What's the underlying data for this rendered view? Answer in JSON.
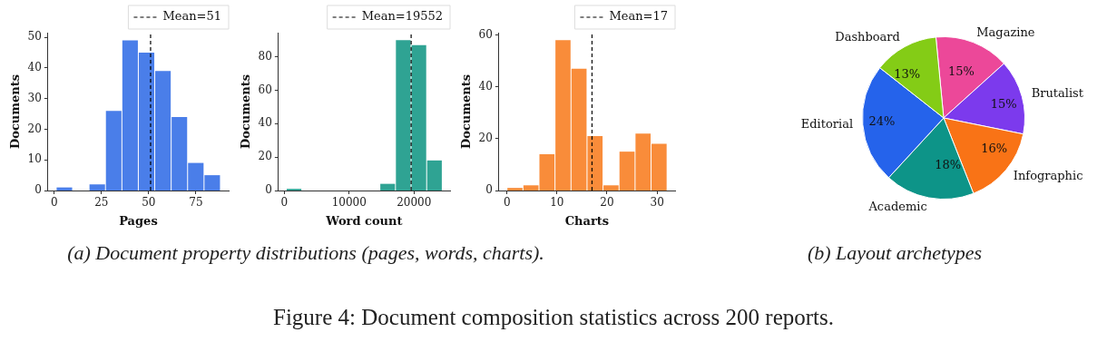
{
  "chart_data": [
    {
      "type": "histogram",
      "xlabel": "Pages",
      "ylabel": "Documents",
      "color": "#4a7ee9",
      "bins": [
        1,
        9.7,
        18.4,
        27.1,
        35.8,
        44.5,
        53.2,
        61.9,
        70.6,
        79.3,
        88
      ],
      "values": [
        1,
        0,
        2,
        26,
        49,
        45,
        39,
        24,
        9,
        5
      ],
      "xlim": [
        -3.35,
        92.35
      ],
      "xticks": [
        0,
        25,
        50,
        75
      ],
      "ylim": [
        0,
        51.5
      ],
      "yticks": [
        0,
        10,
        20,
        30,
        40,
        50
      ],
      "ref_lines": [
        {
          "axis": "x",
          "value": 51,
          "label": "Mean=51",
          "color": "#000000",
          "line_style": "dashed"
        }
      ],
      "legend": "top right",
      "grid": false,
      "annotations": [
        "(a) Document property distributions (pages, words, charts)."
      ]
    },
    {
      "type": "histogram",
      "xlabel": "Word count",
      "ylabel": "Documents",
      "color": "#2fa393",
      "bins": [
        300,
        2705,
        5110,
        7515,
        9920,
        12325,
        14730,
        17135,
        19540,
        21945,
        24350
      ],
      "values": [
        1,
        0,
        0,
        0,
        0,
        0,
        4,
        90,
        87,
        18
      ],
      "xlim": [
        -902,
        25552
      ],
      "xticks": [
        0,
        10000,
        20000
      ],
      "ylim": [
        0,
        94.5
      ],
      "yticks": [
        0,
        20,
        40,
        60,
        80
      ],
      "ref_lines": [
        {
          "axis": "x",
          "value": 19552,
          "label": "Mean=19552",
          "color": "#000000",
          "line_style": "dashed"
        }
      ],
      "legend": "top right",
      "grid": false
    },
    {
      "type": "histogram",
      "xlabel": "Charts",
      "ylabel": "Documents",
      "color": "#f98c3a",
      "bins": [
        0,
        3.2,
        6.4,
        9.6,
        12.8,
        16,
        19.2,
        22.4,
        25.6,
        28.8,
        32
      ],
      "values": [
        1,
        2,
        14,
        58,
        47,
        21,
        2,
        15,
        22,
        18
      ],
      "xlim": [
        -1.6,
        33.6
      ],
      "xticks": [
        0,
        10,
        20,
        30
      ],
      "ylim": [
        0,
        60.9
      ],
      "yticks": [
        0,
        20,
        40,
        60
      ],
      "ref_lines": [
        {
          "axis": "x",
          "value": 17,
          "label": "Mean=17",
          "color": "#000000",
          "line_style": "dashed"
        }
      ],
      "legend": "top right",
      "grid": false
    },
    {
      "type": "pie",
      "categories": [
        "Magazine",
        "Brutalist",
        "Infographic",
        "Academic",
        "Editorial",
        "Dashboard"
      ],
      "values": [
        15,
        15,
        16,
        18,
        24,
        13
      ],
      "colors": [
        "#ec4899",
        "#7c3aed",
        "#f97316",
        "#0d9488",
        "#2563eb",
        "#84cc16"
      ],
      "value_labels": [
        "15%",
        "15%",
        "16%",
        "18%",
        "24%",
        "13%"
      ],
      "legend": false,
      "annotations": [
        "(b) Layout archetypes",
        "Figure 4: Document composition statistics across 200 reports."
      ]
    }
  ]
}
